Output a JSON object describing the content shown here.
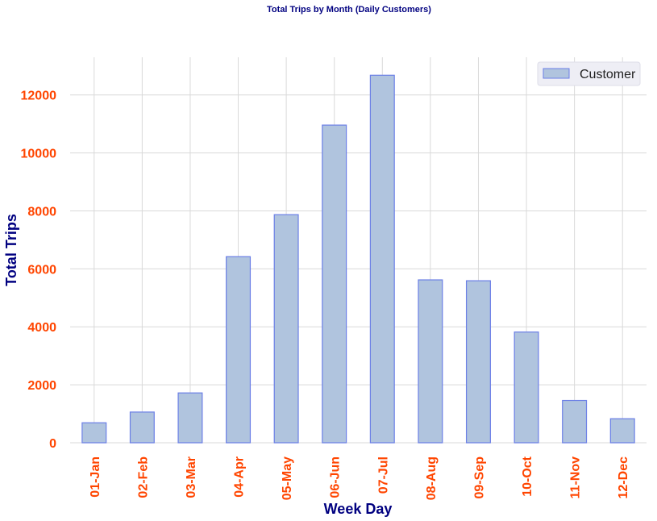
{
  "chart_data": {
    "type": "bar",
    "title": "Total Trips by Month (Daily Customers)",
    "xlabel": "Week Day",
    "ylabel": "Total Trips",
    "categories": [
      "01-Jan",
      "02-Feb",
      "03-Mar",
      "04-Apr",
      "05-May",
      "06-Jun",
      "07-Jul",
      "08-Aug",
      "09-Sep",
      "10-Oct",
      "11-Nov",
      "12-Dec"
    ],
    "series": [
      {
        "name": "Customer",
        "values": [
          690,
          1060,
          1720,
          6420,
          7870,
          10960,
          12680,
          5620,
          5590,
          3820,
          1460,
          830
        ]
      }
    ],
    "ylim": [
      0,
      13300
    ],
    "yticks": [
      0,
      2000,
      4000,
      6000,
      8000,
      10000,
      12000
    ],
    "grid": true,
    "legend_position": "top-right",
    "colors": {
      "bar_fill": "#b0c4de",
      "bar_edge": "#6b7fe6",
      "tick_label": "#ff4500",
      "axis_title": "#000080",
      "title": "#000080",
      "grid": "#d9d9d9"
    }
  }
}
